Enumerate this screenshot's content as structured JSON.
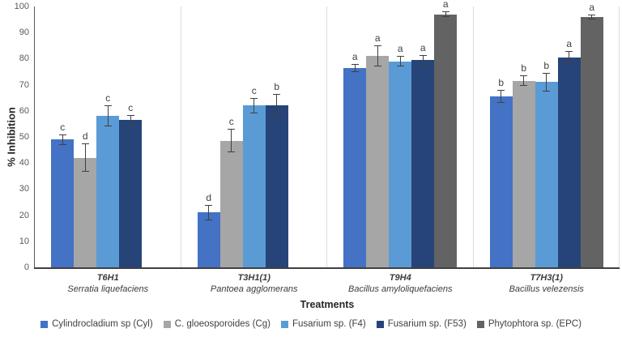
{
  "chart_data": {
    "type": "bar",
    "title": "",
    "ylabel": "% Inhibition",
    "xlabel": "Treatments",
    "ylim": [
      0,
      100
    ],
    "ytick_step": 10,
    "grid": false,
    "legend_position": "bottom",
    "error_bars": true,
    "categories": [
      {
        "code": "T6H1",
        "species": "Serratia liquefaciens"
      },
      {
        "code": "T3H1(1)",
        "species": "Pantoea agglomerans"
      },
      {
        "code": "T9H4",
        "species": "Bacillus amyloliquefaciens"
      },
      {
        "code": "T7H3(1)",
        "species": "Bacillus velezensis"
      }
    ],
    "series": [
      {
        "name": "Cylindrocladium sp (Cyl)",
        "color": "#4472C4",
        "values": [
          49,
          21,
          76.5,
          65.5
        ],
        "errors": [
          2,
          3,
          1.5,
          2.5
        ],
        "letters": [
          "c",
          "d",
          "a",
          "b"
        ]
      },
      {
        "name": "C. gloeosporoides (Cg)",
        "color": "#A6A6A6",
        "values": [
          42,
          48.5,
          81,
          71.5
        ],
        "errors": [
          5.5,
          4.5,
          4,
          2
        ],
        "letters": [
          "d",
          "c",
          "a",
          "b"
        ]
      },
      {
        "name": "Fusarium sp. (F4)",
        "color": "#5B9BD5",
        "values": [
          58,
          62,
          79,
          71
        ],
        "errors": [
          4,
          3,
          2,
          3.5
        ],
        "letters": [
          "c",
          "c",
          "a",
          "b"
        ]
      },
      {
        "name": "Fusarium sp. (F53)",
        "color": "#264478",
        "values": [
          56.5,
          62,
          79.5,
          80.5
        ],
        "errors": [
          2,
          4.5,
          2,
          2.5
        ],
        "letters": [
          "c",
          "b",
          "a",
          "a"
        ]
      },
      {
        "name": "Phytophtora sp. (EPC)",
        "color": "#636363",
        "values": [
          null,
          null,
          97,
          96
        ],
        "errors": [
          null,
          null,
          1,
          1
        ],
        "letters": [
          "",
          "",
          "a",
          "a"
        ]
      }
    ]
  }
}
